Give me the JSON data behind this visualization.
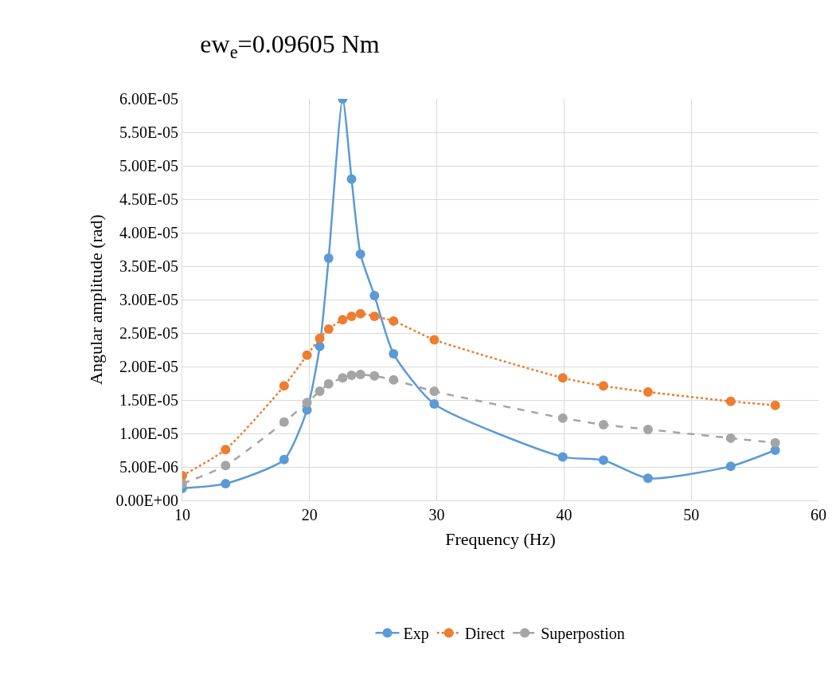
{
  "chart_data": {
    "type": "line",
    "title": "ew$_{e}$=0.09605 Nm",
    "xlabel": "Frequency (Hz)",
    "ylabel": "Angular amplitude (rad)",
    "x": [
      10,
      13.4,
      18.0,
      19.8,
      20.8,
      21.5,
      22.6,
      23.3,
      24.0,
      25.1,
      26.6,
      29.8,
      39.9,
      43.1,
      46.6,
      53.1,
      56.6
    ],
    "series": [
      {
        "name": "Exp",
        "color": "#5b9bd5",
        "line_style": "solid",
        "values": [
          1.8e-06,
          2.5e-06,
          6.1e-06,
          1.35e-05,
          2.3e-05,
          3.62e-05,
          6e-05,
          4.8e-05,
          3.68e-05,
          3.06e-05,
          2.19e-05,
          1.44e-05,
          6.5e-06,
          6e-06,
          3.3e-06,
          5.1e-06,
          7.5e-06
        ]
      },
      {
        "name": "Direct",
        "color": "#ed7d31",
        "line_style": "dotted",
        "values": [
          3.7e-06,
          7.6e-06,
          1.71e-05,
          2.17e-05,
          2.42e-05,
          2.56e-05,
          2.7e-05,
          2.75e-05,
          2.79e-05,
          2.75e-05,
          2.68e-05,
          2.4e-05,
          1.83e-05,
          1.71e-05,
          1.62e-05,
          1.48e-05,
          1.42e-05
        ]
      },
      {
        "name": "Superpostion",
        "color": "#a5a5a5",
        "line_style": "dashed",
        "values": [
          2.5e-06,
          5.2e-06,
          1.17e-05,
          1.46e-05,
          1.63e-05,
          1.74e-05,
          1.83e-05,
          1.87e-05,
          1.88e-05,
          1.86e-05,
          1.8e-05,
          1.63e-05,
          1.23e-05,
          1.13e-05,
          1.06e-05,
          9.3e-06,
          8.6e-06
        ]
      }
    ],
    "xlim": [
      10,
      60
    ],
    "xticks": [
      10,
      20,
      30,
      40,
      50,
      60
    ],
    "ylim": [
      0,
      6e-05
    ],
    "yticks": [
      {
        "value": 0,
        "label": "0.00E+00"
      },
      {
        "value": 5e-06,
        "label": "5.00E-06"
      },
      {
        "value": 1e-05,
        "label": "1.00E-05"
      },
      {
        "value": 1.5e-05,
        "label": "1.50E-05"
      },
      {
        "value": 2e-05,
        "label": "2.00E-05"
      },
      {
        "value": 2.5e-05,
        "label": "2.50E-05"
      },
      {
        "value": 3e-05,
        "label": "3.00E-05"
      },
      {
        "value": 3.5e-05,
        "label": "3.50E-05"
      },
      {
        "value": 4e-05,
        "label": "4.00E-05"
      },
      {
        "value": 4.5e-05,
        "label": "4.50E-05"
      },
      {
        "value": 5e-05,
        "label": "5.00E-05"
      },
      {
        "value": 5.5e-05,
        "label": "5.50E-05"
      },
      {
        "value": 6e-05,
        "label": "6.00E-05"
      }
    ],
    "grid": true,
    "legend": "bottom",
    "marker": "circle"
  }
}
